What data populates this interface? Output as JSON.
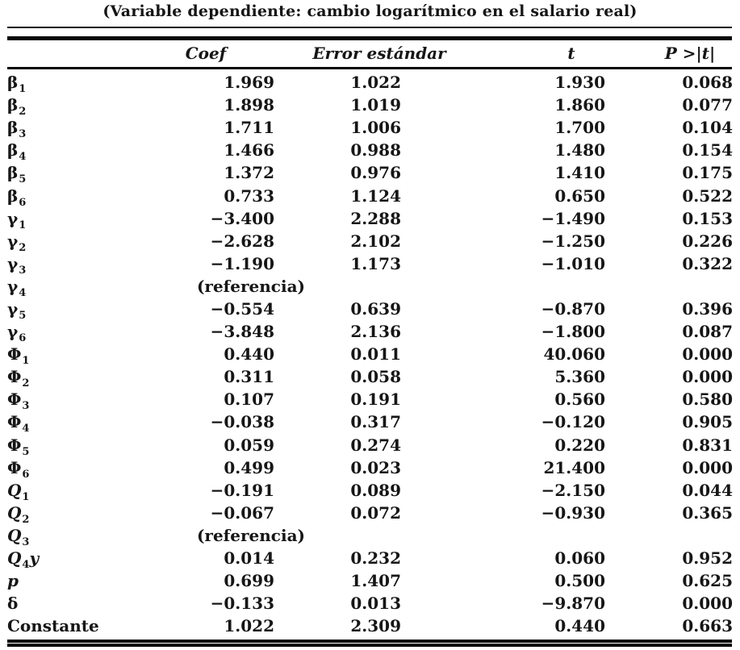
{
  "title": "(Variable dependiente: cambio logarítmico en el salario real)",
  "colors": {
    "background": "#ffffff",
    "text": "#161616",
    "rule": "#050505"
  },
  "table": {
    "headers": {
      "coef": "Coef",
      "se": "Error estándar",
      "t": "t",
      "p": "P >|t|"
    },
    "reference_text": "(referencia)",
    "rows": [
      {
        "sym": "β",
        "sub": "1",
        "suffix": "",
        "italic": false,
        "coef": "1.969",
        "se": "1.022",
        "t": "1.930",
        "p": "0.068"
      },
      {
        "sym": "β",
        "sub": "2",
        "suffix": "",
        "italic": false,
        "coef": "1.898",
        "se": "1.019",
        "t": "1.860",
        "p": "0.077"
      },
      {
        "sym": "β",
        "sub": "3",
        "suffix": "",
        "italic": false,
        "coef": "1.711",
        "se": "1.006",
        "t": "1.700",
        "p": "0.104"
      },
      {
        "sym": "β",
        "sub": "4",
        "suffix": "",
        "italic": false,
        "coef": "1.466",
        "se": "0.988",
        "t": "1.480",
        "p": "0.154"
      },
      {
        "sym": "β",
        "sub": "5",
        "suffix": "",
        "italic": false,
        "coef": "1.372",
        "se": "0.976",
        "t": "1.410",
        "p": "0.175"
      },
      {
        "sym": "β",
        "sub": "6",
        "suffix": "",
        "italic": false,
        "coef": "0.733",
        "se": "1.124",
        "t": "0.650",
        "p": "0.522"
      },
      {
        "sym": "γ",
        "sub": "1",
        "suffix": "",
        "italic": false,
        "coef": "−3.400",
        "se": "2.288",
        "t": "−1.490",
        "p": "0.153"
      },
      {
        "sym": "γ",
        "sub": "2",
        "suffix": "",
        "italic": false,
        "coef": "−2.628",
        "se": "2.102",
        "t": "−1.250",
        "p": "0.226"
      },
      {
        "sym": "γ",
        "sub": "3",
        "suffix": "",
        "italic": false,
        "coef": "−1.190",
        "se": "1.173",
        "t": "−1.010",
        "p": "0.322"
      },
      {
        "sym": "γ",
        "sub": "4",
        "suffix": "",
        "italic": false,
        "coef": "(referencia)",
        "se": "",
        "t": "",
        "p": ""
      },
      {
        "sym": "γ",
        "sub": "5",
        "suffix": "",
        "italic": false,
        "coef": "−0.554",
        "se": "0.639",
        "t": "−0.870",
        "p": "0.396"
      },
      {
        "sym": "γ",
        "sub": "6",
        "suffix": "",
        "italic": false,
        "coef": "−3.848",
        "se": "2.136",
        "t": "−1.800",
        "p": "0.087"
      },
      {
        "sym": "Φ",
        "sub": "1",
        "suffix": "",
        "italic": false,
        "coef": "0.440",
        "se": "0.011",
        "t": "40.060",
        "p": "0.000"
      },
      {
        "sym": "Φ",
        "sub": "2",
        "suffix": "",
        "italic": false,
        "coef": "0.311",
        "se": "0.058",
        "t": "5.360",
        "p": "0.000"
      },
      {
        "sym": "Φ",
        "sub": "3",
        "suffix": "",
        "italic": false,
        "coef": "0.107",
        "se": "0.191",
        "t": "0.560",
        "p": "0.580"
      },
      {
        "sym": "Φ",
        "sub": "4",
        "suffix": "",
        "italic": false,
        "coef": "−0.038",
        "se": "0.317",
        "t": "−0.120",
        "p": "0.905"
      },
      {
        "sym": "Φ",
        "sub": "5",
        "suffix": "",
        "italic": false,
        "coef": "0.059",
        "se": "0.274",
        "t": "0.220",
        "p": "0.831"
      },
      {
        "sym": "Φ",
        "sub": "6",
        "suffix": "",
        "italic": false,
        "coef": "0.499",
        "se": "0.023",
        "t": "21.400",
        "p": "0.000"
      },
      {
        "sym": "Q",
        "sub": "1",
        "suffix": "",
        "italic": true,
        "coef": "−0.191",
        "se": "0.089",
        "t": "−2.150",
        "p": "0.044"
      },
      {
        "sym": "Q",
        "sub": "2",
        "suffix": "",
        "italic": true,
        "coef": "−0.067",
        "se": "0.072",
        "t": "−0.930",
        "p": "0.365"
      },
      {
        "sym": "Q",
        "sub": "3",
        "suffix": "",
        "italic": true,
        "coef": "(referencia)",
        "se": "",
        "t": "",
        "p": ""
      },
      {
        "sym": "Q",
        "sub": "4",
        "suffix": "y",
        "italic": true,
        "coef": "0.014",
        "se": "0.232",
        "t": "0.060",
        "p": "0.952"
      },
      {
        "sym": "p",
        "sub": "",
        "suffix": "",
        "italic": true,
        "coef": "0.699",
        "se": "1.407",
        "t": "0.500",
        "p": "0.625"
      },
      {
        "sym": "δ",
        "sub": "",
        "suffix": "",
        "italic": false,
        "coef": "−0.133",
        "se": "0.013",
        "t": "−9.870",
        "p": "0.000"
      },
      {
        "sym": "Constante",
        "sub": "",
        "suffix": "",
        "italic": false,
        "coef": "1.022",
        "se": "2.309",
        "t": "0.440",
        "p": "0.663"
      }
    ]
  }
}
